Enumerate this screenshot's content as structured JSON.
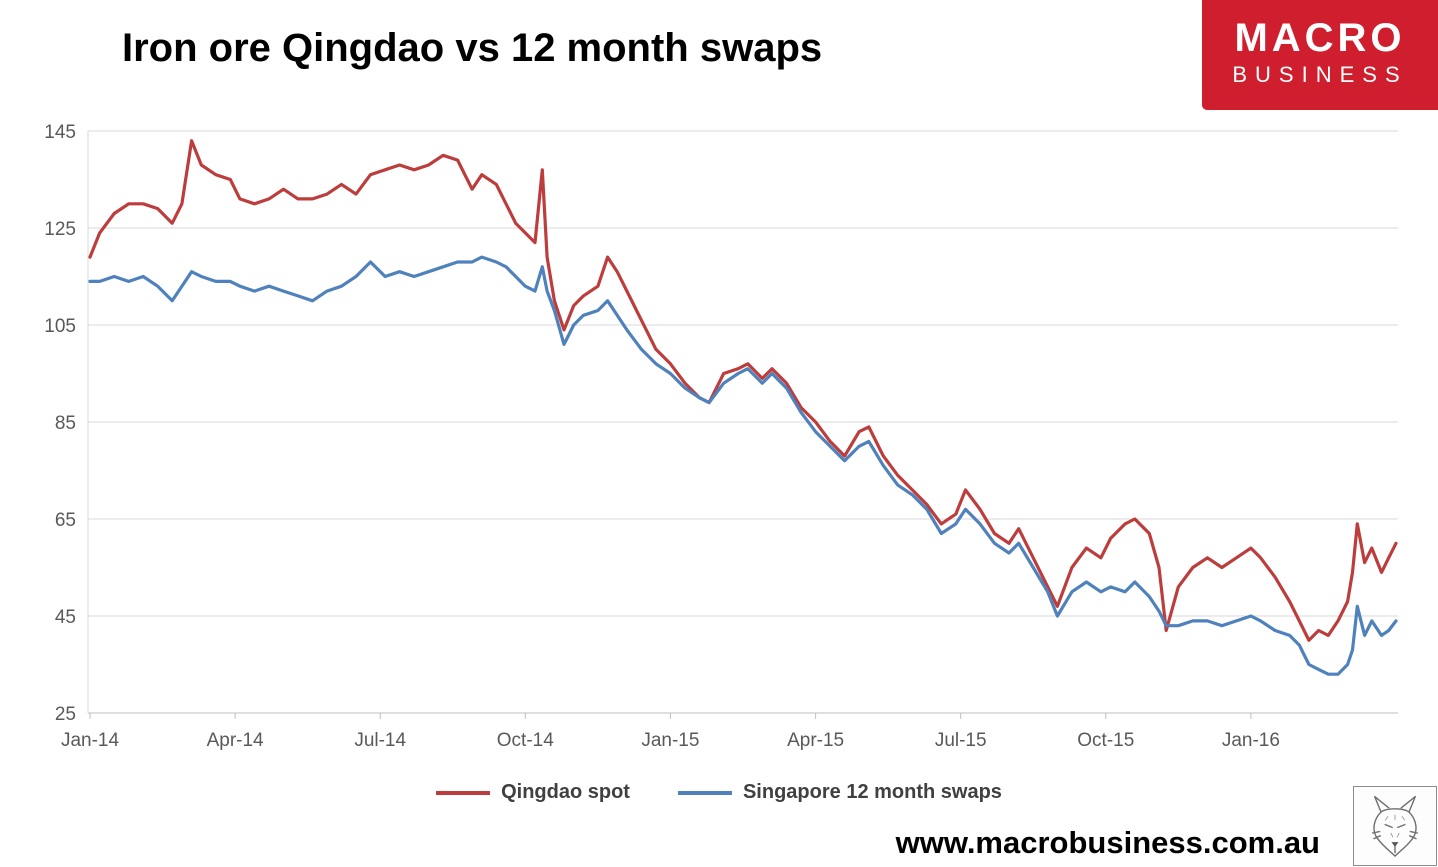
{
  "title": "Iron ore Qingdao vs 12 month swaps",
  "logo": {
    "line1": "MACRO",
    "line2": "BUSINESS",
    "bg": "#cf1e2e"
  },
  "footer": {
    "url": "www.macrobusiness.com.au"
  },
  "legend": [
    {
      "label": "Qingdao spot",
      "color": "#bd3d3d"
    },
    {
      "label": "Singapore 12 month swaps",
      "color": "#4f81bd"
    }
  ],
  "chart_data": {
    "type": "line",
    "title": "Iron ore Qingdao vs 12 month swaps",
    "xlabel": "",
    "ylabel": "",
    "x_unit": "months since Jan-2014",
    "xlim": [
      0,
      27
    ],
    "ylim": [
      25,
      145
    ],
    "grid": "horizontal",
    "legend_position": "bottom",
    "y_ticks": [
      25,
      45,
      65,
      85,
      105,
      125,
      145
    ],
    "x_ticks": [
      {
        "m": 0,
        "label": "Jan-14"
      },
      {
        "m": 3,
        "label": "Apr-14"
      },
      {
        "m": 6,
        "label": "Jul-14"
      },
      {
        "m": 9,
        "label": "Oct-14"
      },
      {
        "m": 12,
        "label": "Jan-15"
      },
      {
        "m": 15,
        "label": "Apr-15"
      },
      {
        "m": 18,
        "label": "Jul-15"
      },
      {
        "m": 21,
        "label": "Oct-15"
      },
      {
        "m": 24,
        "label": "Jan-16"
      }
    ],
    "series": [
      {
        "name": "Qingdao spot",
        "color": "#bd3d3d",
        "points": [
          [
            0,
            119
          ],
          [
            0.2,
            124
          ],
          [
            0.5,
            128
          ],
          [
            0.8,
            130
          ],
          [
            1.1,
            130
          ],
          [
            1.4,
            129
          ],
          [
            1.7,
            126
          ],
          [
            1.9,
            130
          ],
          [
            2.1,
            143
          ],
          [
            2.3,
            138
          ],
          [
            2.6,
            136
          ],
          [
            2.9,
            135
          ],
          [
            3.1,
            131
          ],
          [
            3.4,
            130
          ],
          [
            3.7,
            131
          ],
          [
            4,
            133
          ],
          [
            4.3,
            131
          ],
          [
            4.6,
            131
          ],
          [
            4.9,
            132
          ],
          [
            5.2,
            134
          ],
          [
            5.5,
            132
          ],
          [
            5.8,
            136
          ],
          [
            6.1,
            137
          ],
          [
            6.4,
            138
          ],
          [
            6.7,
            137
          ],
          [
            7,
            138
          ],
          [
            7.3,
            140
          ],
          [
            7.6,
            139
          ],
          [
            7.9,
            133
          ],
          [
            8.1,
            136
          ],
          [
            8.4,
            134
          ],
          [
            8.6,
            130
          ],
          [
            8.8,
            126
          ],
          [
            9,
            124
          ],
          [
            9.2,
            122
          ],
          [
            9.35,
            137
          ],
          [
            9.45,
            119
          ],
          [
            9.6,
            110
          ],
          [
            9.8,
            104
          ],
          [
            10,
            109
          ],
          [
            10.2,
            111
          ],
          [
            10.5,
            113
          ],
          [
            10.7,
            119
          ],
          [
            10.9,
            116
          ],
          [
            11.1,
            112
          ],
          [
            11.4,
            106
          ],
          [
            11.7,
            100
          ],
          [
            12,
            97
          ],
          [
            12.3,
            93
          ],
          [
            12.6,
            90
          ],
          [
            12.8,
            89
          ],
          [
            13.1,
            95
          ],
          [
            13.4,
            96
          ],
          [
            13.6,
            97
          ],
          [
            13.9,
            94
          ],
          [
            14.1,
            96
          ],
          [
            14.4,
            93
          ],
          [
            14.7,
            88
          ],
          [
            15,
            85
          ],
          [
            15.3,
            81
          ],
          [
            15.6,
            78
          ],
          [
            15.9,
            83
          ],
          [
            16.1,
            84
          ],
          [
            16.4,
            78
          ],
          [
            16.7,
            74
          ],
          [
            17,
            71
          ],
          [
            17.3,
            68
          ],
          [
            17.6,
            64
          ],
          [
            17.9,
            66
          ],
          [
            18.1,
            71
          ],
          [
            18.4,
            67
          ],
          [
            18.7,
            62
          ],
          [
            19,
            60
          ],
          [
            19.2,
            63
          ],
          [
            19.5,
            57
          ],
          [
            19.8,
            51
          ],
          [
            20,
            47
          ],
          [
            20.3,
            55
          ],
          [
            20.6,
            59
          ],
          [
            20.9,
            57
          ],
          [
            21.1,
            61
          ],
          [
            21.4,
            64
          ],
          [
            21.6,
            65
          ],
          [
            21.9,
            62
          ],
          [
            22.1,
            55
          ],
          [
            22.25,
            42
          ],
          [
            22.5,
            51
          ],
          [
            22.8,
            55
          ],
          [
            23.1,
            57
          ],
          [
            23.4,
            55
          ],
          [
            23.7,
            57
          ],
          [
            24,
            59
          ],
          [
            24.2,
            57
          ],
          [
            24.5,
            53
          ],
          [
            24.8,
            48
          ],
          [
            25,
            44
          ],
          [
            25.2,
            40
          ],
          [
            25.4,
            42
          ],
          [
            25.6,
            41
          ],
          [
            25.8,
            44
          ],
          [
            26,
            48
          ],
          [
            26.1,
            54
          ],
          [
            26.2,
            64
          ],
          [
            26.35,
            56
          ],
          [
            26.5,
            59
          ],
          [
            26.7,
            54
          ],
          [
            26.85,
            57
          ],
          [
            27,
            60
          ]
        ]
      },
      {
        "name": "Singapore 12 month swaps",
        "color": "#4f81bd",
        "points": [
          [
            0,
            114
          ],
          [
            0.2,
            114
          ],
          [
            0.5,
            115
          ],
          [
            0.8,
            114
          ],
          [
            1.1,
            115
          ],
          [
            1.4,
            113
          ],
          [
            1.7,
            110
          ],
          [
            1.9,
            113
          ],
          [
            2.1,
            116
          ],
          [
            2.3,
            115
          ],
          [
            2.6,
            114
          ],
          [
            2.9,
            114
          ],
          [
            3.1,
            113
          ],
          [
            3.4,
            112
          ],
          [
            3.7,
            113
          ],
          [
            4,
            112
          ],
          [
            4.3,
            111
          ],
          [
            4.6,
            110
          ],
          [
            4.9,
            112
          ],
          [
            5.2,
            113
          ],
          [
            5.5,
            115
          ],
          [
            5.8,
            118
          ],
          [
            6.1,
            115
          ],
          [
            6.4,
            116
          ],
          [
            6.7,
            115
          ],
          [
            7,
            116
          ],
          [
            7.3,
            117
          ],
          [
            7.6,
            118
          ],
          [
            7.9,
            118
          ],
          [
            8.1,
            119
          ],
          [
            8.4,
            118
          ],
          [
            8.6,
            117
          ],
          [
            8.8,
            115
          ],
          [
            9,
            113
          ],
          [
            9.2,
            112
          ],
          [
            9.35,
            117
          ],
          [
            9.45,
            112
          ],
          [
            9.6,
            108
          ],
          [
            9.8,
            101
          ],
          [
            10,
            105
          ],
          [
            10.2,
            107
          ],
          [
            10.5,
            108
          ],
          [
            10.7,
            110
          ],
          [
            10.9,
            107
          ],
          [
            11.1,
            104
          ],
          [
            11.4,
            100
          ],
          [
            11.7,
            97
          ],
          [
            12,
            95
          ],
          [
            12.3,
            92
          ],
          [
            12.6,
            90
          ],
          [
            12.8,
            89
          ],
          [
            13.1,
            93
          ],
          [
            13.4,
            95
          ],
          [
            13.6,
            96
          ],
          [
            13.9,
            93
          ],
          [
            14.1,
            95
          ],
          [
            14.4,
            92
          ],
          [
            14.7,
            87
          ],
          [
            15,
            83
          ],
          [
            15.3,
            80
          ],
          [
            15.6,
            77
          ],
          [
            15.9,
            80
          ],
          [
            16.1,
            81
          ],
          [
            16.4,
            76
          ],
          [
            16.7,
            72
          ],
          [
            17,
            70
          ],
          [
            17.3,
            67
          ],
          [
            17.6,
            62
          ],
          [
            17.9,
            64
          ],
          [
            18.1,
            67
          ],
          [
            18.4,
            64
          ],
          [
            18.7,
            60
          ],
          [
            19,
            58
          ],
          [
            19.2,
            60
          ],
          [
            19.5,
            55
          ],
          [
            19.8,
            50
          ],
          [
            20,
            45
          ],
          [
            20.3,
            50
          ],
          [
            20.6,
            52
          ],
          [
            20.9,
            50
          ],
          [
            21.1,
            51
          ],
          [
            21.4,
            50
          ],
          [
            21.6,
            52
          ],
          [
            21.9,
            49
          ],
          [
            22.1,
            46
          ],
          [
            22.25,
            43
          ],
          [
            22.5,
            43
          ],
          [
            22.8,
            44
          ],
          [
            23.1,
            44
          ],
          [
            23.4,
            43
          ],
          [
            23.7,
            44
          ],
          [
            24,
            45
          ],
          [
            24.2,
            44
          ],
          [
            24.5,
            42
          ],
          [
            24.8,
            41
          ],
          [
            25,
            39
          ],
          [
            25.2,
            35
          ],
          [
            25.4,
            34
          ],
          [
            25.6,
            33
          ],
          [
            25.8,
            33
          ],
          [
            26,
            35
          ],
          [
            26.1,
            38
          ],
          [
            26.2,
            47
          ],
          [
            26.35,
            41
          ],
          [
            26.5,
            44
          ],
          [
            26.7,
            41
          ],
          [
            26.85,
            42
          ],
          [
            27,
            44
          ]
        ]
      }
    ]
  }
}
